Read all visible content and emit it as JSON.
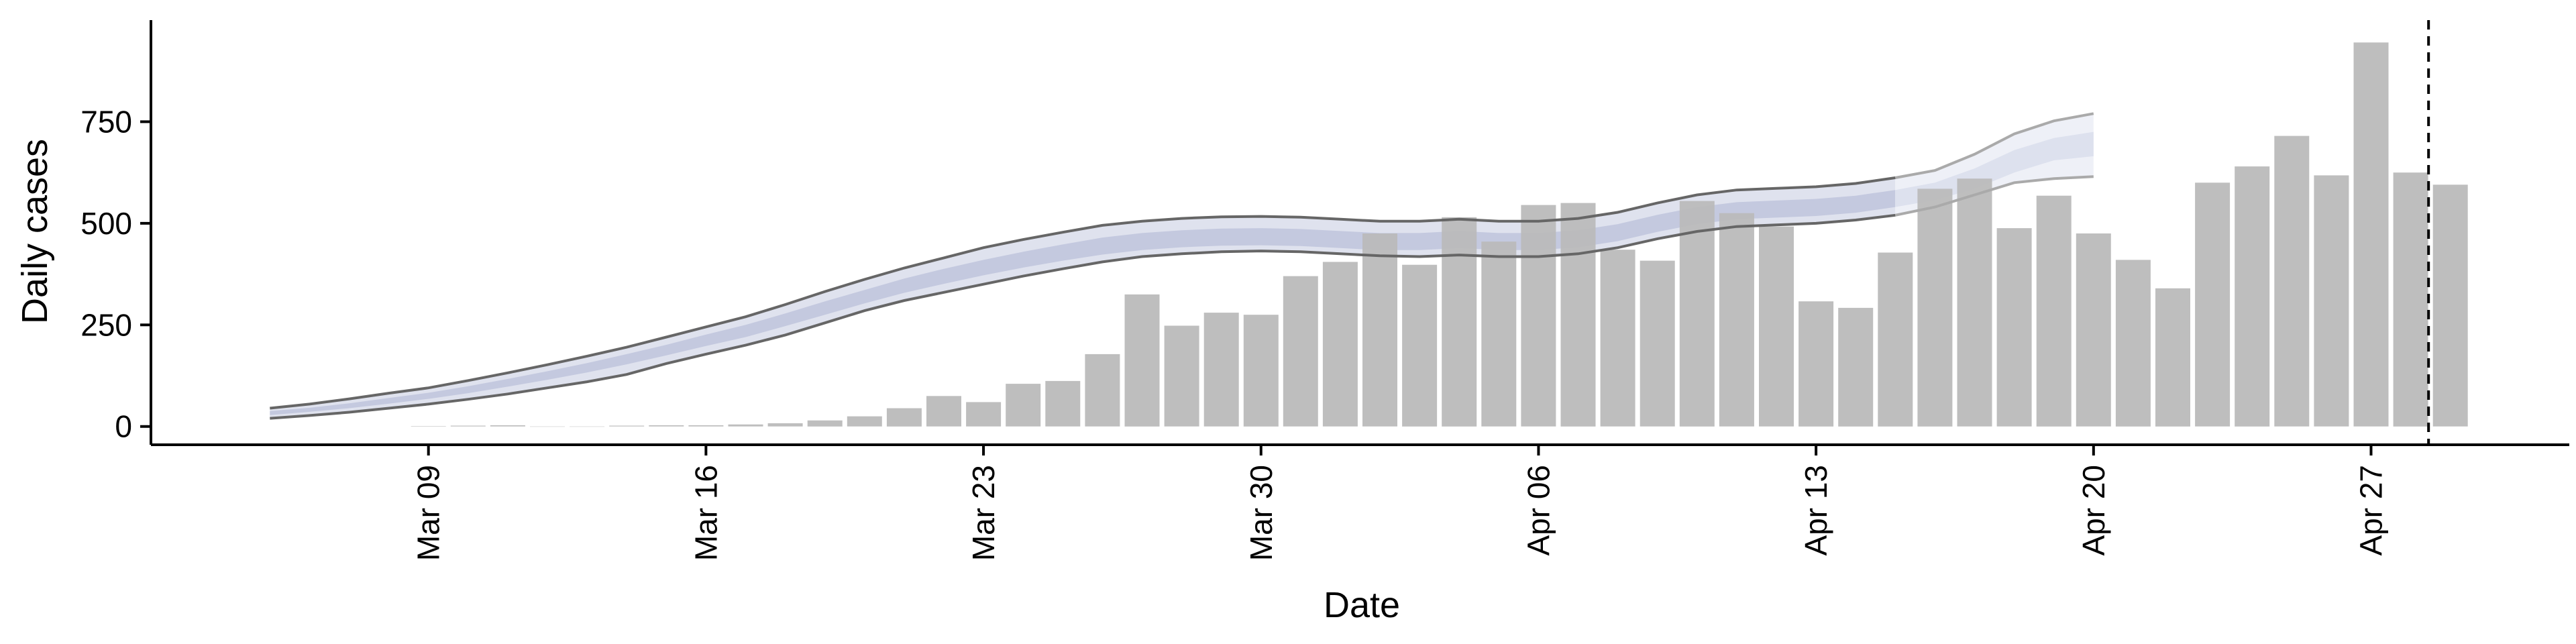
{
  "chart_data": {
    "type": "bar",
    "xlabel": "Date",
    "ylabel": "Daily cases",
    "x_tick_labels": [
      "Mar 09",
      "Mar 16",
      "Mar 23",
      "Mar 30",
      "Apr 06",
      "Apr 13",
      "Apr 20",
      "Apr 27"
    ],
    "y_ticks": [
      0,
      250,
      500,
      750
    ],
    "ylim": [
      -45,
      1000
    ],
    "xlim": [
      "2020-03-02",
      "2020-05-02"
    ],
    "grid": false,
    "colors": {
      "bars": "#bbbbbb",
      "band_outer": "#dfe2ee",
      "band_inner": "#c4c9df",
      "band_edge": "#666666",
      "forecast_outer": "#eef0f7",
      "forecast_inner": "#dde1ee",
      "forecast_edge": "#aaaaaa",
      "cutoff_line": "#000000"
    },
    "reported_cases": {
      "dates": [
        "2020-03-09",
        "2020-03-10",
        "2020-03-11",
        "2020-03-12",
        "2020-03-13",
        "2020-03-14",
        "2020-03-15",
        "2020-03-16",
        "2020-03-17",
        "2020-03-18",
        "2020-03-19",
        "2020-03-20",
        "2020-03-21",
        "2020-03-22",
        "2020-03-23",
        "2020-03-24",
        "2020-03-25",
        "2020-03-26",
        "2020-03-27",
        "2020-03-28",
        "2020-03-29",
        "2020-03-30",
        "2020-03-31",
        "2020-04-01",
        "2020-04-02",
        "2020-04-03",
        "2020-04-04",
        "2020-04-05",
        "2020-04-06",
        "2020-04-07",
        "2020-04-08",
        "2020-04-09",
        "2020-04-10",
        "2020-04-11",
        "2020-04-12",
        "2020-04-13",
        "2020-04-14",
        "2020-04-15",
        "2020-04-16",
        "2020-04-17",
        "2020-04-18",
        "2020-04-19",
        "2020-04-20",
        "2020-04-21",
        "2020-04-22",
        "2020-04-23",
        "2020-04-24",
        "2020-04-25",
        "2020-04-26",
        "2020-04-27",
        "2020-04-28",
        "2020-04-29"
      ],
      "values": [
        1,
        2,
        3,
        0,
        0,
        2,
        3,
        3,
        5,
        8,
        15,
        25,
        45,
        75,
        60,
        105,
        112,
        178,
        325,
        248,
        280,
        275,
        370,
        405,
        475,
        398,
        515,
        455,
        545,
        550,
        435,
        408,
        555,
        525,
        492,
        308,
        292,
        428,
        585,
        610,
        488,
        568,
        475,
        410,
        340,
        600,
        640,
        715,
        618,
        945,
        625,
        595
      ]
    },
    "estimated_cases": {
      "dates": [
        "2020-03-05",
        "2020-03-06",
        "2020-03-07",
        "2020-03-08",
        "2020-03-09",
        "2020-03-10",
        "2020-03-11",
        "2020-03-12",
        "2020-03-13",
        "2020-03-14",
        "2020-03-15",
        "2020-03-16",
        "2020-03-17",
        "2020-03-18",
        "2020-03-19",
        "2020-03-20",
        "2020-03-21",
        "2020-03-22",
        "2020-03-23",
        "2020-03-24",
        "2020-03-25",
        "2020-03-26",
        "2020-03-27",
        "2020-03-28",
        "2020-03-29",
        "2020-03-30",
        "2020-03-31",
        "2020-04-01",
        "2020-04-02",
        "2020-04-03",
        "2020-04-04",
        "2020-04-05",
        "2020-04-06",
        "2020-04-07",
        "2020-04-08",
        "2020-04-09",
        "2020-04-10",
        "2020-04-11",
        "2020-04-12",
        "2020-04-13",
        "2020-04-14",
        "2020-04-15",
        "2020-04-16",
        "2020-04-17",
        "2020-04-18",
        "2020-04-19",
        "2020-04-20"
      ],
      "upper_90": [
        45,
        55,
        68,
        82,
        95,
        113,
        132,
        152,
        173,
        195,
        220,
        245,
        270,
        300,
        332,
        362,
        390,
        415,
        440,
        460,
        478,
        495,
        505,
        512,
        516,
        517,
        515,
        510,
        505,
        505,
        510,
        505,
        505,
        512,
        527,
        550,
        570,
        582,
        586,
        590,
        598,
        612,
        630,
        670,
        720,
        752,
        770
      ],
      "upper_50": [
        38,
        46,
        57,
        70,
        83,
        99,
        117,
        136,
        156,
        178,
        201,
        226,
        250,
        278,
        308,
        336,
        364,
        388,
        410,
        430,
        448,
        465,
        476,
        483,
        487,
        488,
        486,
        481,
        476,
        476,
        481,
        476,
        476,
        483,
        498,
        521,
        540,
        552,
        556,
        560,
        568,
        582,
        600,
        635,
        680,
        710,
        725
      ],
      "lower_50": [
        28,
        36,
        45,
        56,
        68,
        82,
        98,
        115,
        133,
        153,
        175,
        198,
        220,
        247,
        275,
        303,
        329,
        351,
        372,
        391,
        408,
        423,
        434,
        441,
        445,
        446,
        444,
        439,
        434,
        434,
        439,
        434,
        434,
        441,
        456,
        479,
        498,
        510,
        514,
        518,
        526,
        540,
        557,
        585,
        625,
        655,
        665
      ],
      "lower_90": [
        20,
        27,
        35,
        45,
        55,
        67,
        80,
        95,
        110,
        128,
        155,
        178,
        200,
        225,
        255,
        285,
        310,
        330,
        350,
        370,
        388,
        405,
        418,
        425,
        430,
        432,
        430,
        425,
        420,
        418,
        422,
        418,
        418,
        425,
        440,
        462,
        480,
        492,
        496,
        500,
        508,
        520,
        540,
        570,
        600,
        610,
        615
      ]
    },
    "forecast_start": "2020-04-15",
    "data_cutoff": "2020-04-29"
  }
}
